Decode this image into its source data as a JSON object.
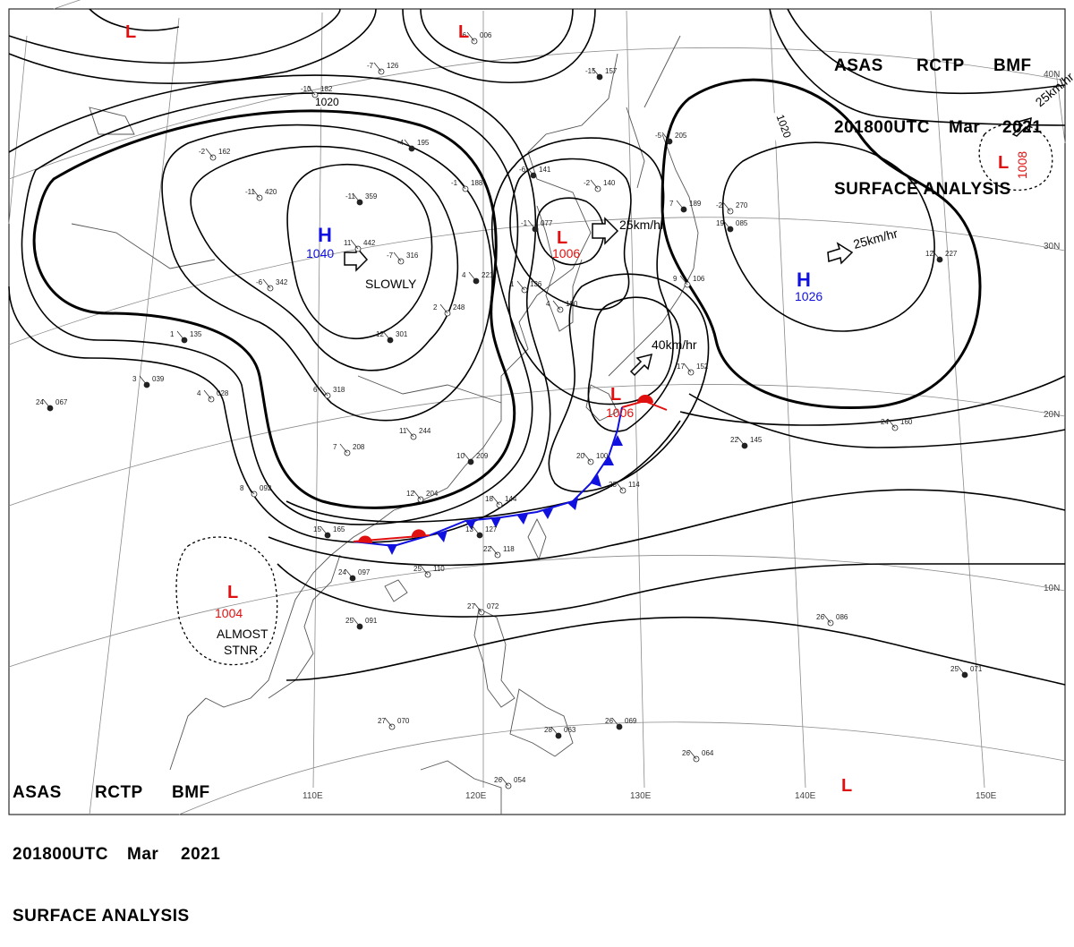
{
  "header": {
    "line1": [
      "ASAS",
      "RCTP",
      "BMF"
    ],
    "line2": [
      "201800UTC",
      "Mar",
      "2021"
    ],
    "line3": "SURFACE ANALYSIS"
  },
  "colors": {
    "high": "#1010e0",
    "low": "#e01010",
    "isobar": "#000000",
    "grid": "#8a8a8a",
    "coast": "#555555",
    "front_cold": "#1010e0",
    "front_warm": "#e01010"
  },
  "grid": {
    "lon_labels": [
      "110E",
      "120E",
      "130E",
      "140E",
      "150E"
    ],
    "lat_labels": [
      "40N",
      "30N",
      "20N",
      "10N"
    ]
  },
  "isobar_labels": [
    "1020",
    "1020"
  ],
  "pressure_systems": [
    {
      "type": "H",
      "value": "1040",
      "motion": "SLOWLY"
    },
    {
      "type": "H",
      "value": "1026",
      "motion": "25km/hr"
    },
    {
      "type": "L",
      "value": "1006",
      "motion": "25km/hr"
    },
    {
      "type": "L",
      "value": "1006",
      "motion": "40km/hr"
    },
    {
      "type": "L",
      "value": "1008",
      "motion": "25km/hr"
    },
    {
      "type": "L",
      "value": "1004",
      "motion": "ALMOST STNR"
    },
    {
      "type": "L",
      "value": ""
    },
    {
      "type": "L",
      "value": ""
    },
    {
      "type": "L",
      "value": ""
    }
  ],
  "station_plots": [
    {
      "id": "st01",
      "t": "-10",
      "p": "182"
    },
    {
      "id": "st02",
      "t": "-7",
      "p": "126"
    },
    {
      "id": "st03",
      "t": "-6",
      "p": "006"
    },
    {
      "id": "st04",
      "t": "-15",
      "p": "157"
    },
    {
      "id": "st05",
      "t": "-4",
      "p": "195"
    },
    {
      "id": "st06",
      "t": "-1",
      "p": "188"
    },
    {
      "id": "st07",
      "t": "-6",
      "p": "141"
    },
    {
      "id": "st08",
      "t": "-2",
      "p": "140"
    },
    {
      "id": "st09",
      "t": "-11",
      "p": "420"
    },
    {
      "id": "st10",
      "t": "-11",
      "p": "359"
    },
    {
      "id": "st11",
      "t": "-1",
      "p": "077"
    },
    {
      "id": "st12",
      "t": "-7",
      "p": "316"
    },
    {
      "id": "st13",
      "t": "4",
      "p": "221"
    },
    {
      "id": "st14",
      "t": "1",
      "p": "136"
    },
    {
      "id": "st15",
      "t": "4",
      "p": "100"
    },
    {
      "id": "st16",
      "t": "2",
      "p": "248"
    },
    {
      "id": "st17",
      "t": "12",
      "p": "301"
    },
    {
      "id": "st18",
      "t": "6",
      "p": "318"
    },
    {
      "id": "st19",
      "t": "11",
      "p": "244"
    },
    {
      "id": "st20",
      "t": "10",
      "p": "209"
    },
    {
      "id": "st21",
      "t": "12",
      "p": "204"
    },
    {
      "id": "st22",
      "t": "18",
      "p": "144"
    },
    {
      "id": "st23",
      "t": "13",
      "p": "127"
    },
    {
      "id": "st24",
      "t": "22",
      "p": "118"
    },
    {
      "id": "st25",
      "t": "25",
      "p": "110"
    },
    {
      "id": "st26",
      "t": "24",
      "p": "097"
    },
    {
      "id": "st27",
      "t": "25",
      "p": "091"
    },
    {
      "id": "st28",
      "t": "27",
      "p": "072"
    },
    {
      "id": "st29",
      "t": "27",
      "p": "070"
    },
    {
      "id": "st30",
      "t": "26",
      "p": "054"
    },
    {
      "id": "st31",
      "t": "28",
      "p": "063"
    },
    {
      "id": "st32",
      "t": "26",
      "p": "069"
    },
    {
      "id": "st33",
      "t": "26",
      "p": "064"
    },
    {
      "id": "st34",
      "t": "26",
      "p": "086"
    },
    {
      "id": "st35",
      "t": "25",
      "p": "071"
    },
    {
      "id": "st36",
      "t": "24",
      "p": "160"
    },
    {
      "id": "st37",
      "t": "22",
      "p": "145"
    },
    {
      "id": "st38",
      "t": "17",
      "p": "152"
    },
    {
      "id": "st39",
      "t": "12",
      "p": "227"
    },
    {
      "id": "st40",
      "t": "-2",
      "p": "270"
    },
    {
      "id": "st41",
      "t": "7",
      "p": "189"
    },
    {
      "id": "st42",
      "t": "9",
      "p": "106"
    },
    {
      "id": "st43",
      "t": "-5",
      "p": "205"
    },
    {
      "id": "st44",
      "t": "23",
      "p": "114"
    },
    {
      "id": "st45",
      "t": "20",
      "p": "100"
    },
    {
      "id": "st46",
      "t": "3",
      "p": "039"
    },
    {
      "id": "st47",
      "t": "24",
      "p": "067"
    },
    {
      "id": "st48",
      "t": "4",
      "p": "028"
    },
    {
      "id": "st49",
      "t": "8",
      "p": "092"
    },
    {
      "id": "st50",
      "t": "1",
      "p": "135"
    },
    {
      "id": "st51",
      "t": "11",
      "p": "442"
    },
    {
      "id": "st52",
      "t": "-6",
      "p": "342"
    },
    {
      "id": "st53",
      "t": "7",
      "p": "208"
    },
    {
      "id": "st54",
      "t": "15",
      "p": "165"
    },
    {
      "id": "st55",
      "t": "19",
      "p": "085"
    },
    {
      "id": "st56",
      "t": "-2",
      "p": "162"
    }
  ]
}
